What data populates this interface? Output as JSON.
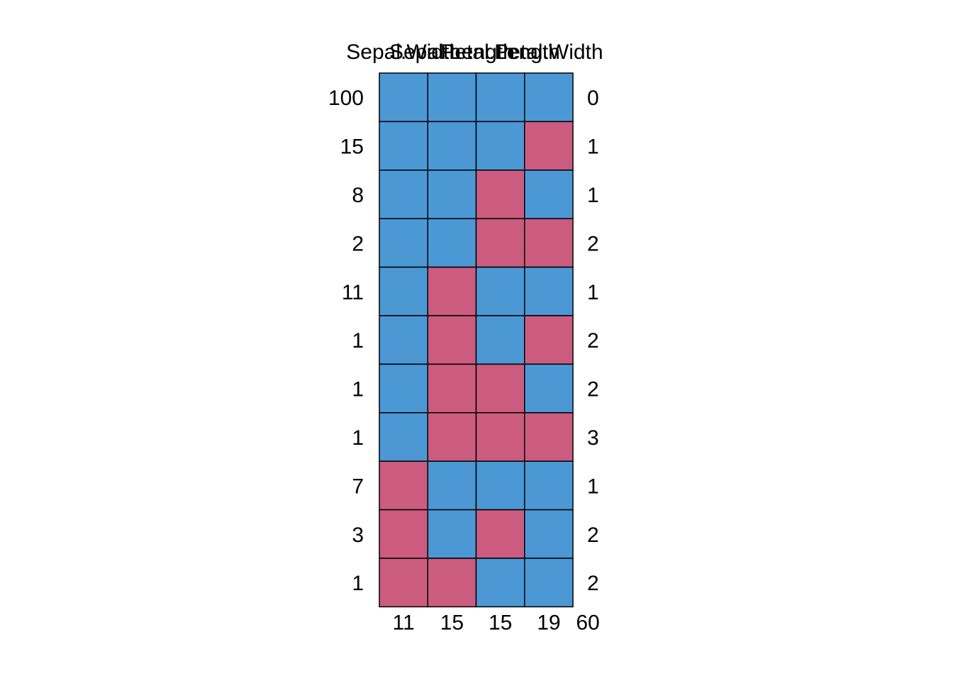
{
  "chart_data": {
    "type": "heatmap",
    "title": "",
    "xlabel": "",
    "ylabel": "",
    "columns": [
      "Sepal.Width",
      "Sepal.Length",
      "Petal.Length",
      "Petal.Width"
    ],
    "row_counts": [
      100,
      15,
      8,
      2,
      11,
      1,
      1,
      1,
      7,
      3,
      1
    ],
    "row_missing_counts": [
      0,
      1,
      1,
      2,
      1,
      2,
      2,
      3,
      1,
      2,
      2
    ],
    "column_missing_counts": [
      11,
      15,
      15,
      19
    ],
    "total_missing": 60,
    "patterns": [
      [
        1,
        1,
        1,
        1
      ],
      [
        1,
        1,
        1,
        0
      ],
      [
        1,
        1,
        0,
        1
      ],
      [
        1,
        1,
        0,
        0
      ],
      [
        1,
        0,
        1,
        1
      ],
      [
        1,
        0,
        1,
        0
      ],
      [
        1,
        0,
        0,
        1
      ],
      [
        1,
        0,
        0,
        0
      ],
      [
        0,
        1,
        1,
        1
      ],
      [
        0,
        1,
        0,
        1
      ],
      [
        0,
        0,
        1,
        1
      ]
    ],
    "legend": "none",
    "grid": false,
    "colors": {
      "observed": "#4b98d5",
      "missing": "#cb5c80",
      "border": "#000000"
    }
  }
}
